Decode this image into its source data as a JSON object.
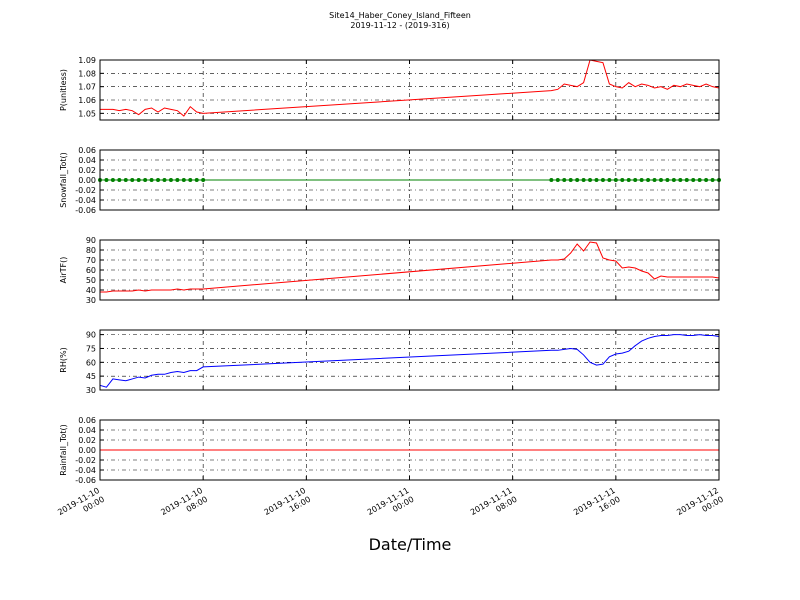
{
  "chart_data": {
    "title": "Site14_Haber_Coney_Island_Fifteen",
    "subtitle": "2019-11-12 - (2019-316)",
    "x_label": "Date/Time",
    "xlim": [
      "2019-11-10 00:00",
      "2019-11-12 00:00"
    ],
    "xticks": [
      "2019-11-10 00:00",
      "2019-11-10 08:00",
      "2019-11-10 16:00",
      "2019-11-11 00:00",
      "2019-11-11 08:00",
      "2019-11-11 16:00",
      "2019-11-12 00:00"
    ],
    "grid": true,
    "x": [
      "2019-11-10 00:00",
      "2019-11-10 00:30",
      "2019-11-10 01:00",
      "2019-11-10 01:30",
      "2019-11-10 02:00",
      "2019-11-10 02:30",
      "2019-11-10 03:00",
      "2019-11-10 03:30",
      "2019-11-10 04:00",
      "2019-11-10 04:30",
      "2019-11-10 05:00",
      "2019-11-10 05:30",
      "2019-11-10 06:00",
      "2019-11-10 06:30",
      "2019-11-10 07:00",
      "2019-11-10 07:30",
      "2019-11-10 08:00",
      "2019-11-11 11:00",
      "2019-11-11 11:30",
      "2019-11-11 12:00",
      "2019-11-11 12:30",
      "2019-11-11 13:00",
      "2019-11-11 13:30",
      "2019-11-11 14:00",
      "2019-11-11 14:30",
      "2019-11-11 15:00",
      "2019-11-11 15:30",
      "2019-11-11 16:00",
      "2019-11-11 16:30",
      "2019-11-11 17:00",
      "2019-11-11 17:30",
      "2019-11-11 18:00",
      "2019-11-11 18:30",
      "2019-11-11 19:00",
      "2019-11-11 19:30",
      "2019-11-11 20:00",
      "2019-11-11 20:30",
      "2019-11-11 21:00",
      "2019-11-11 21:30",
      "2019-11-11 22:00",
      "2019-11-11 22:30",
      "2019-11-11 23:00",
      "2019-11-11 23:30",
      "2019-11-12 00:00"
    ],
    "panels": [
      {
        "type": "line",
        "ylabel": "P(unitless)",
        "ylim": [
          1.045,
          1.09
        ],
        "yticks": [
          1.05,
          1.06,
          1.07,
          1.08,
          1.09
        ],
        "series": [
          {
            "color": "#ff0000",
            "values": [
              1.053,
              1.053,
              1.053,
              1.052,
              1.053,
              1.052,
              1.049,
              1.053,
              1.054,
              1.051,
              1.054,
              1.053,
              1.052,
              1.048,
              1.055,
              1.051,
              1.05,
              1.067,
              1.068,
              1.072,
              1.071,
              1.07,
              1.073,
              1.09,
              1.089,
              1.088,
              1.072,
              1.07,
              1.069,
              1.073,
              1.07,
              1.072,
              1.071,
              1.069,
              1.07,
              1.068,
              1.071,
              1.07,
              1.072,
              1.071,
              1.07,
              1.072,
              1.07,
              1.069
            ]
          }
        ]
      },
      {
        "type": "line",
        "ylabel": "Snowfall_Tot()",
        "ylim": [
          -0.06,
          0.06
        ],
        "yticks": [
          -0.06,
          -0.04,
          -0.02,
          {
            "value": 0,
            "label": "0.00"
          },
          0.02,
          0.04,
          0.06
        ],
        "markers": true,
        "series": [
          {
            "color": "#008000",
            "values": [
              0,
              0,
              0,
              0,
              0,
              0,
              0,
              0,
              0,
              0,
              0,
              0,
              0,
              0,
              0,
              0,
              0,
              0,
              0,
              0,
              0,
              0,
              0,
              0,
              0,
              0,
              0,
              0,
              0,
              0,
              0,
              0,
              0,
              0,
              0,
              0,
              0,
              0,
              0,
              0,
              0,
              0,
              0,
              0
            ]
          }
        ]
      },
      {
        "type": "line",
        "ylabel": "AirTF()",
        "ylim": [
          30,
          90
        ],
        "yticks": [
          30,
          40,
          50,
          60,
          70,
          80,
          90
        ],
        "series": [
          {
            "color": "#ff0000",
            "values": [
              38,
              38,
              39,
              39,
              39,
              39,
              40,
              39,
              40,
              40,
              40,
              40,
              41,
              40,
              41,
              41,
              41,
              70,
              70,
              71,
              77,
              86,
              79,
              88,
              87,
              72,
              70,
              69,
              62,
              63,
              62,
              59,
              57,
              51,
              54,
              53,
              53,
              53,
              53,
              53,
              53,
              53,
              53,
              52
            ]
          }
        ]
      },
      {
        "type": "line",
        "ylabel": "RH(%)",
        "ylim": [
          30,
          95
        ],
        "yticks": [
          30,
          45,
          60,
          75,
          90
        ],
        "series": [
          {
            "color": "#0000ff",
            "values": [
              35,
              33,
              42,
              41,
              40,
              42,
              44,
              43,
              46,
              47,
              47,
              49,
              50,
              49,
              51,
              51,
              55,
              73,
              73,
              74,
              75,
              74,
              68,
              60,
              57,
              58,
              66,
              69,
              70,
              72,
              78,
              83,
              86,
              88,
              89,
              89,
              90,
              90,
              89,
              89,
              90,
              89,
              89,
              88
            ]
          }
        ]
      },
      {
        "type": "line",
        "ylabel": "Rainfall_Tot()",
        "ylim": [
          -0.06,
          0.06
        ],
        "yticks": [
          -0.06,
          -0.04,
          -0.02,
          {
            "value": 0,
            "label": "0.00"
          },
          0.02,
          0.04,
          0.06
        ],
        "series": [
          {
            "color": "#ff0000",
            "values": [
              0,
              0,
              0,
              0,
              0,
              0,
              0,
              0,
              0,
              0,
              0,
              0,
              0,
              0,
              0,
              0,
              0,
              0,
              0,
              0,
              0,
              0,
              0,
              0,
              0,
              0,
              0,
              0,
              0,
              0,
              0,
              0,
              0,
              0,
              0,
              0,
              0,
              0,
              0,
              0,
              0,
              0,
              0,
              0
            ]
          }
        ]
      }
    ]
  }
}
